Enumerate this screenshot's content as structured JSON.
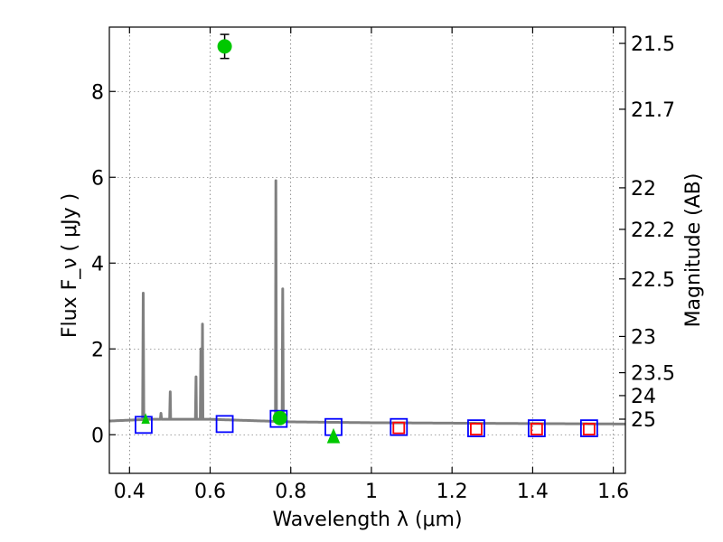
{
  "chart_data": {
    "type": "scatter",
    "title": "",
    "xlabel": "Wavelength  λ (μm)",
    "ylabel": "Flux  F_ν ( μJy )",
    "y2label": "Magnitude (AB)",
    "xlim": [
      0.35,
      1.63
    ],
    "ylim": [
      -0.9,
      9.5
    ],
    "grid": true,
    "x_ticks": [
      0.4,
      0.6,
      0.8,
      1.0,
      1.2,
      1.4,
      1.6
    ],
    "x_tick_labels": [
      "0.4",
      "0.6",
      "0.8",
      "1",
      "1.2",
      "1.4",
      "1.6"
    ],
    "y_ticks": [
      0,
      2,
      4,
      6,
      8
    ],
    "y_tick_labels": [
      "0",
      "2",
      "4",
      "6",
      "8"
    ],
    "y2_ticks": [
      {
        "mag": 21.5,
        "label": "21.5"
      },
      {
        "mag": 21.7,
        "label": "21.7"
      },
      {
        "mag": 22.0,
        "label": "22"
      },
      {
        "mag": 22.2,
        "label": "22.2"
      },
      {
        "mag": 22.5,
        "label": "22.5"
      },
      {
        "mag": 23.0,
        "label": "23"
      },
      {
        "mag": 23.5,
        "label": "23.5"
      },
      {
        "mag": 24.0,
        "label": "24"
      },
      {
        "mag": 25.0,
        "label": "25"
      }
    ],
    "series": [
      {
        "kind": "model-spectrum",
        "color": "#808080",
        "continuum": [
          [
            0.35,
            0.32
          ],
          [
            0.45,
            0.36
          ],
          [
            0.6,
            0.36
          ],
          [
            0.8,
            0.3
          ],
          [
            1.0,
            0.28
          ],
          [
            1.2,
            0.27
          ],
          [
            1.4,
            0.26
          ],
          [
            1.63,
            0.25
          ]
        ],
        "emission_lines": [
          {
            "x": 0.434,
            "peak": 3.3
          },
          {
            "x": 0.478,
            "peak": 0.5
          },
          {
            "x": 0.501,
            "peak": 1.0
          },
          {
            "x": 0.565,
            "peak": 1.35
          },
          {
            "x": 0.577,
            "peak": 2.0
          },
          {
            "x": 0.581,
            "peak": 2.58
          },
          {
            "x": 0.763,
            "peak": 5.92
          },
          {
            "x": 0.78,
            "peak": 3.4
          }
        ]
      },
      {
        "kind": "model-photometry-blue",
        "marker": "open-square",
        "color": "#0000ff",
        "x": [
          0.435,
          0.636,
          0.77,
          0.906,
          1.068,
          1.26,
          1.41,
          1.54
        ],
        "y": [
          0.23,
          0.25,
          0.37,
          0.18,
          0.18,
          0.15,
          0.15,
          0.15
        ]
      },
      {
        "kind": "model-photometry-red",
        "marker": "open-square",
        "color": "#ff0000",
        "x": [
          1.068,
          1.26,
          1.41,
          1.54
        ],
        "y": [
          0.16,
          0.13,
          0.13,
          0.13
        ]
      },
      {
        "kind": "observed-detections",
        "marker": "filled-circle",
        "color": "#00c800",
        "x": [
          0.636,
          0.773
        ],
        "y": [
          9.05,
          0.39
        ],
        "yerr": [
          0.28,
          0.05
        ]
      },
      {
        "kind": "observed-upper-limit",
        "marker": "filled-triangle",
        "color": "#00c800",
        "x": [
          0.906
        ],
        "y": [
          -0.05
        ]
      },
      {
        "kind": "observed-small",
        "marker": "small-triangle",
        "color": "#00c800",
        "x": [
          0.44
        ],
        "y": [
          0.35
        ]
      }
    ]
  }
}
